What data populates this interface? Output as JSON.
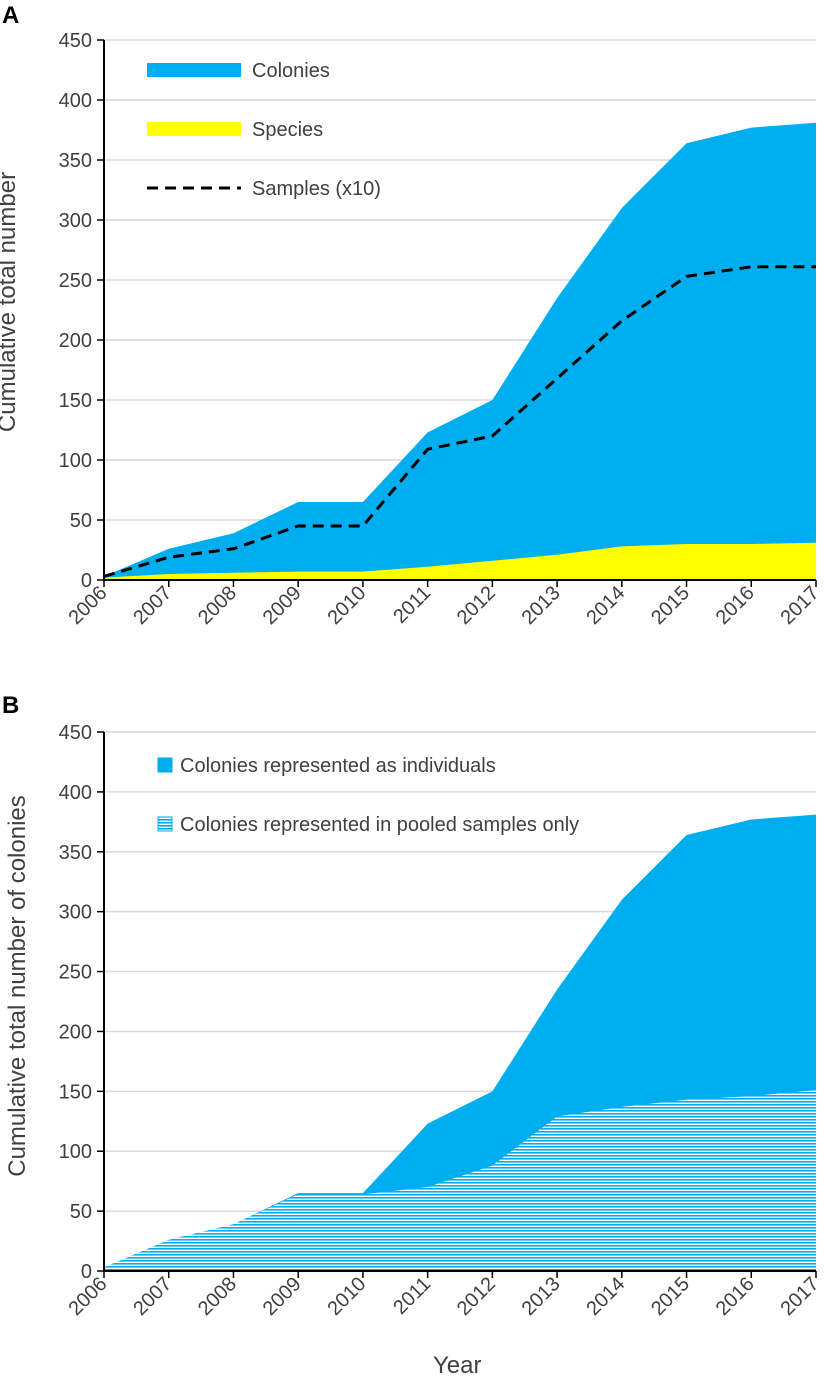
{
  "chart_data": [
    {
      "panel_label": "A",
      "type": "area",
      "title": "",
      "xlabel": "",
      "ylabel": "Cumulative total number",
      "ylim": [
        0,
        450
      ],
      "yticks": [
        0,
        50,
        100,
        150,
        200,
        250,
        300,
        350,
        400,
        450
      ],
      "categories": [
        "2006",
        "2007",
        "2008",
        "2009",
        "2010",
        "2011",
        "2012",
        "2013",
        "2014",
        "2015",
        "2016",
        "2017"
      ],
      "grid": true,
      "legend_position": "top-left",
      "series": [
        {
          "name": "Colonies",
          "style": "area",
          "color": "#00AEEF",
          "values": [
            3,
            26,
            39,
            65,
            65,
            123,
            150,
            235,
            310,
            364,
            377,
            381
          ]
        },
        {
          "name": "Species",
          "style": "area",
          "color": "#FFFF00",
          "values": [
            2,
            5,
            6,
            7,
            7,
            11,
            16,
            21,
            28,
            30,
            30,
            31
          ]
        },
        {
          "name": "Samples (x10)",
          "style": "dashed-line",
          "color": "#000000",
          "values": [
            3,
            19,
            26,
            45,
            45,
            109,
            120,
            168,
            216,
            253,
            261,
            261
          ]
        }
      ]
    },
    {
      "panel_label": "B",
      "type": "area",
      "title": "",
      "xlabel": "Year",
      "ylabel": "Cumulative total number of colonies",
      "ylim": [
        0,
        450
      ],
      "yticks": [
        0,
        50,
        100,
        150,
        200,
        250,
        300,
        350,
        400,
        450
      ],
      "categories": [
        "2006",
        "2007",
        "2008",
        "2009",
        "2010",
        "2011",
        "2012",
        "2013",
        "2014",
        "2015",
        "2016",
        "2017"
      ],
      "grid": true,
      "legend_position": "top-left",
      "series": [
        {
          "name": "Colonies represented as individuals",
          "style": "area",
          "color": "#00AEEF",
          "values": [
            3,
            26,
            39,
            65,
            65,
            123,
            150,
            235,
            310,
            364,
            377,
            381
          ]
        },
        {
          "name": "Colonies represented in pooled samples only",
          "style": "hatched-area",
          "color": "#00AEEF",
          "values": [
            3,
            26,
            39,
            64,
            64,
            70,
            88,
            129,
            137,
            143,
            146,
            151
          ]
        }
      ]
    }
  ]
}
